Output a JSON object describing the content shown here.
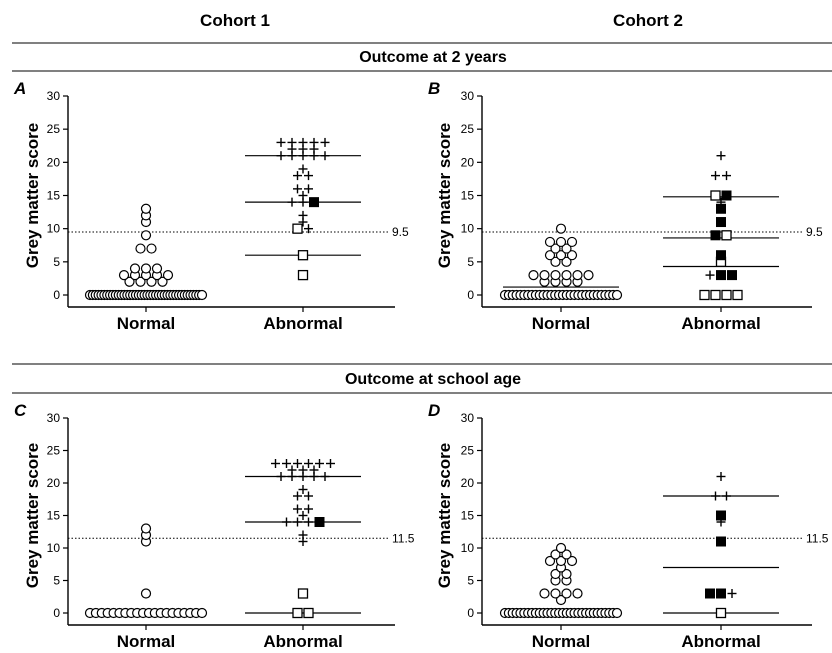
{
  "header": {
    "cohort_titles": [
      "Cohort 1",
      "Cohort 2"
    ],
    "row_titles": [
      "Outcome at 2 years",
      "Outcome at school age"
    ]
  },
  "chart_data": [
    {
      "type": "scatter",
      "panel_label": "A",
      "ylabel": "Grey matter score",
      "categories": [
        "Normal",
        "Abnormal"
      ],
      "ylim": [
        0,
        30
      ],
      "yticks": [
        0,
        5,
        10,
        15,
        20,
        25,
        30
      ],
      "threshold": 9.5,
      "threshold_label": "9.5",
      "points": [
        {
          "cat": 0,
          "y": 0,
          "m": "circle",
          "n": 40
        },
        {
          "cat": 0,
          "y": 2,
          "m": "circle",
          "n": 4
        },
        {
          "cat": 0,
          "y": 3,
          "m": "circle",
          "n": 5
        },
        {
          "cat": 0,
          "y": 4,
          "m": "circle",
          "n": 3
        },
        {
          "cat": 0,
          "y": 7,
          "m": "circle",
          "n": 2
        },
        {
          "cat": 0,
          "y": 9,
          "m": "circle",
          "n": 1
        },
        {
          "cat": 0,
          "y": 11,
          "m": "circle",
          "n": 1
        },
        {
          "cat": 0,
          "y": 12,
          "m": "circle",
          "n": 1
        },
        {
          "cat": 0,
          "y": 13,
          "m": "circle",
          "n": 1
        },
        {
          "cat": 1,
          "y": 3,
          "m": "square-open",
          "n": 1
        },
        {
          "cat": 1,
          "y": 6,
          "m": "square-open",
          "n": 1
        },
        {
          "cat": 1,
          "y": 10,
          "m": "square-open",
          "n": 1
        },
        {
          "cat": 1,
          "y": 10,
          "m": "plus",
          "n": 1
        },
        {
          "cat": 1,
          "y": 11,
          "m": "plus",
          "n": 1
        },
        {
          "cat": 1,
          "y": 12,
          "m": "plus",
          "n": 1
        },
        {
          "cat": 1,
          "y": 14,
          "m": "plus",
          "n": 2
        },
        {
          "cat": 1,
          "y": 14,
          "m": "square-filled",
          "n": 1
        },
        {
          "cat": 1,
          "y": 15,
          "m": "plus",
          "n": 1
        },
        {
          "cat": 1,
          "y": 16,
          "m": "plus",
          "n": 2
        },
        {
          "cat": 1,
          "y": 18,
          "m": "plus",
          "n": 2
        },
        {
          "cat": 1,
          "y": 19,
          "m": "plus",
          "n": 1
        },
        {
          "cat": 1,
          "y": 21,
          "m": "plus",
          "n": 5
        },
        {
          "cat": 1,
          "y": 22,
          "m": "plus",
          "n": 3
        },
        {
          "cat": 1,
          "y": 23,
          "m": "plus",
          "n": 5
        }
      ],
      "lines": [
        {
          "cat": 0,
          "y": 0
        },
        {
          "cat": 1,
          "y": 6
        },
        {
          "cat": 1,
          "y": 14
        },
        {
          "cat": 1,
          "y": 21
        }
      ]
    },
    {
      "type": "scatter",
      "panel_label": "B",
      "ylabel": "Grey matter score",
      "categories": [
        "Normal",
        "Abnormal"
      ],
      "ylim": [
        0,
        30
      ],
      "yticks": [
        0,
        5,
        10,
        15,
        20,
        25,
        30
      ],
      "threshold": 9.5,
      "threshold_label": "9.5",
      "points": [
        {
          "cat": 0,
          "y": 0,
          "m": "circle",
          "n": 30
        },
        {
          "cat": 0,
          "y": 2,
          "m": "circle",
          "n": 4
        },
        {
          "cat": 0,
          "y": 3,
          "m": "circle",
          "n": 6
        },
        {
          "cat": 0,
          "y": 5,
          "m": "circle",
          "n": 2
        },
        {
          "cat": 0,
          "y": 6,
          "m": "circle",
          "n": 3
        },
        {
          "cat": 0,
          "y": 7,
          "m": "circle",
          "n": 2
        },
        {
          "cat": 0,
          "y": 8,
          "m": "circle",
          "n": 3
        },
        {
          "cat": 0,
          "y": 10,
          "m": "circle",
          "n": 1
        },
        {
          "cat": 1,
          "y": 0,
          "m": "square-open",
          "n": 4
        },
        {
          "cat": 1,
          "y": 3,
          "m": "plus",
          "n": 1
        },
        {
          "cat": 1,
          "y": 3,
          "m": "square-filled",
          "n": 2
        },
        {
          "cat": 1,
          "y": 5,
          "m": "square-open",
          "n": 1
        },
        {
          "cat": 1,
          "y": 6,
          "m": "square-filled",
          "n": 1
        },
        {
          "cat": 1,
          "y": 9,
          "m": "square-filled",
          "n": 1
        },
        {
          "cat": 1,
          "y": 9,
          "m": "square-open",
          "n": 1
        },
        {
          "cat": 1,
          "y": 11,
          "m": "square-filled",
          "n": 1
        },
        {
          "cat": 1,
          "y": 13,
          "m": "square-filled",
          "n": 1
        },
        {
          "cat": 1,
          "y": 14,
          "m": "plus",
          "n": 1
        },
        {
          "cat": 1,
          "y": 15,
          "m": "square-open",
          "n": 1
        },
        {
          "cat": 1,
          "y": 15,
          "m": "square-filled",
          "n": 1
        },
        {
          "cat": 1,
          "y": 18,
          "m": "plus",
          "n": 2
        },
        {
          "cat": 1,
          "y": 21,
          "m": "plus",
          "n": 1
        }
      ],
      "lines": [
        {
          "cat": 0,
          "y": 1.2
        },
        {
          "cat": 1,
          "y": 4.3
        },
        {
          "cat": 1,
          "y": 8.6
        },
        {
          "cat": 1,
          "y": 14.8
        }
      ]
    },
    {
      "type": "scatter",
      "panel_label": "C",
      "ylabel": "Grey matter score",
      "categories": [
        "Normal",
        "Abnormal"
      ],
      "ylim": [
        0,
        30
      ],
      "yticks": [
        0,
        5,
        10,
        15,
        20,
        25,
        30
      ],
      "threshold": 11.5,
      "threshold_label": "11.5",
      "points": [
        {
          "cat": 0,
          "y": 0,
          "m": "circle",
          "n": 20
        },
        {
          "cat": 0,
          "y": 3,
          "m": "circle",
          "n": 1
        },
        {
          "cat": 0,
          "y": 11,
          "m": "circle",
          "n": 1
        },
        {
          "cat": 0,
          "y": 12,
          "m": "circle",
          "n": 1
        },
        {
          "cat": 0,
          "y": 13,
          "m": "circle",
          "n": 1
        },
        {
          "cat": 1,
          "y": 0,
          "m": "square-open",
          "n": 2
        },
        {
          "cat": 1,
          "y": 3,
          "m": "square-open",
          "n": 1
        },
        {
          "cat": 1,
          "y": 11,
          "m": "plus",
          "n": 1
        },
        {
          "cat": 1,
          "y": 12,
          "m": "plus",
          "n": 1
        },
        {
          "cat": 1,
          "y": 14,
          "m": "plus",
          "n": 3
        },
        {
          "cat": 1,
          "y": 14,
          "m": "square-filled",
          "n": 1
        },
        {
          "cat": 1,
          "y": 15,
          "m": "plus",
          "n": 1
        },
        {
          "cat": 1,
          "y": 16,
          "m": "plus",
          "n": 2
        },
        {
          "cat": 1,
          "y": 18,
          "m": "plus",
          "n": 2
        },
        {
          "cat": 1,
          "y": 19,
          "m": "plus",
          "n": 1
        },
        {
          "cat": 1,
          "y": 21,
          "m": "plus",
          "n": 5
        },
        {
          "cat": 1,
          "y": 22,
          "m": "plus",
          "n": 3
        },
        {
          "cat": 1,
          "y": 23,
          "m": "plus",
          "n": 6
        }
      ],
      "lines": [
        {
          "cat": 0,
          "y": 0
        },
        {
          "cat": 1,
          "y": 0
        },
        {
          "cat": 1,
          "y": 14
        },
        {
          "cat": 1,
          "y": 21
        }
      ]
    },
    {
      "type": "scatter",
      "panel_label": "D",
      "ylabel": "Grey matter score",
      "categories": [
        "Normal",
        "Abnormal"
      ],
      "ylim": [
        0,
        30
      ],
      "yticks": [
        0,
        5,
        10,
        15,
        20,
        25,
        30
      ],
      "threshold": 11.5,
      "threshold_label": "11.5",
      "points": [
        {
          "cat": 0,
          "y": 0,
          "m": "circle",
          "n": 30
        },
        {
          "cat": 0,
          "y": 2,
          "m": "circle",
          "n": 1
        },
        {
          "cat": 0,
          "y": 3,
          "m": "circle",
          "n": 4
        },
        {
          "cat": 0,
          "y": 5,
          "m": "circle",
          "n": 2
        },
        {
          "cat": 0,
          "y": 6,
          "m": "circle",
          "n": 2
        },
        {
          "cat": 0,
          "y": 7,
          "m": "circle",
          "n": 1
        },
        {
          "cat": 0,
          "y": 8,
          "m": "circle",
          "n": 3
        },
        {
          "cat": 0,
          "y": 9,
          "m": "circle",
          "n": 2
        },
        {
          "cat": 0,
          "y": 10,
          "m": "circle",
          "n": 1
        },
        {
          "cat": 1,
          "y": 0,
          "m": "square-open",
          "n": 1
        },
        {
          "cat": 1,
          "y": 3,
          "m": "square-filled",
          "n": 2
        },
        {
          "cat": 1,
          "y": 3,
          "m": "plus",
          "n": 1
        },
        {
          "cat": 1,
          "y": 11,
          "m": "square-filled",
          "n": 1
        },
        {
          "cat": 1,
          "y": 14,
          "m": "plus",
          "n": 1
        },
        {
          "cat": 1,
          "y": 15,
          "m": "square-filled",
          "n": 1
        },
        {
          "cat": 1,
          "y": 18,
          "m": "plus",
          "n": 2
        },
        {
          "cat": 1,
          "y": 21,
          "m": "plus",
          "n": 1
        }
      ],
      "lines": [
        {
          "cat": 0,
          "y": 0
        },
        {
          "cat": 1,
          "y": 0
        },
        {
          "cat": 1,
          "y": 7
        },
        {
          "cat": 1,
          "y": 18
        }
      ]
    }
  ]
}
